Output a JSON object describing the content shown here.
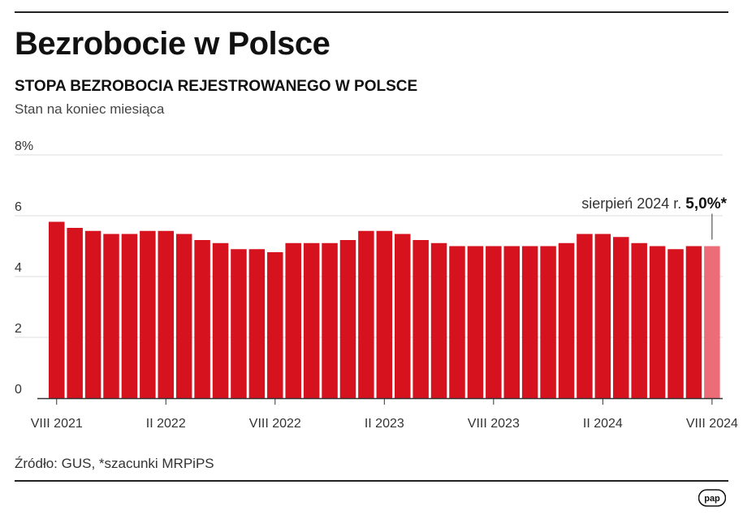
{
  "header": {
    "title": "Bezrobocie w Polsce",
    "subtitle": "STOPA BEZROBOCIA REJESTROWANEGO W POLSCE",
    "note": "Stan na koniec miesiąca"
  },
  "footer": {
    "source": "Źródło: GUS, *szacunki MRPiPS",
    "logo_text": "pap"
  },
  "colors": {
    "bar": "#d7121f",
    "bar_estimate": "#ec6c78",
    "grid": "#dddddd",
    "axis": "#333333"
  },
  "chart_data": {
    "type": "bar",
    "title": "STOPA BEZROBOCIA REJESTROWANEGO W POLSCE",
    "subtitle": "Stan na koniec miesiąca",
    "categories": [
      "VIII 2021",
      "IX 2021",
      "X 2021",
      "XI 2021",
      "XII 2021",
      "I 2022",
      "II 2022",
      "III 2022",
      "IV 2022",
      "V 2022",
      "VI 2022",
      "VII 2022",
      "VIII 2022",
      "IX 2022",
      "X 2022",
      "XI 2022",
      "XII 2022",
      "I 2023",
      "II 2023",
      "III 2023",
      "IV 2023",
      "V 2023",
      "VI 2023",
      "VII 2023",
      "VIII 2023",
      "IX 2023",
      "X 2023",
      "XI 2023",
      "XII 2023",
      "I 2024",
      "II 2024",
      "III 2024",
      "IV 2024",
      "V 2024",
      "VI 2024",
      "VII 2024",
      "VIII 2024"
    ],
    "values": [
      5.8,
      5.6,
      5.5,
      5.4,
      5.4,
      5.5,
      5.5,
      5.4,
      5.2,
      5.1,
      4.9,
      4.9,
      4.8,
      5.1,
      5.1,
      5.1,
      5.2,
      5.5,
      5.5,
      5.4,
      5.2,
      5.1,
      5.0,
      5.0,
      5.0,
      5.0,
      5.0,
      5.0,
      5.1,
      5.4,
      5.4,
      5.3,
      5.1,
      5.0,
      4.9,
      5.0,
      5.0
    ],
    "estimate_index": 36,
    "y_ticks": [
      "0",
      "2",
      "4",
      "6",
      "8%"
    ],
    "y_tick_values": [
      0,
      2,
      4,
      6,
      8
    ],
    "ylim": [
      0,
      8
    ],
    "x_tick_labels": [
      {
        "index": 0,
        "label": "VIII 2021"
      },
      {
        "index": 6,
        "label": "II 2022"
      },
      {
        "index": 12,
        "label": "VIII 2022"
      },
      {
        "index": 18,
        "label": "II 2023"
      },
      {
        "index": 24,
        "label": "VIII 2023"
      },
      {
        "index": 30,
        "label": "II 2024"
      },
      {
        "index": 36,
        "label": "VIII 2024"
      }
    ],
    "annotation": {
      "label": "sierpień 2024 r.",
      "value": "5,0%*"
    },
    "grid": true,
    "legend": "none"
  }
}
